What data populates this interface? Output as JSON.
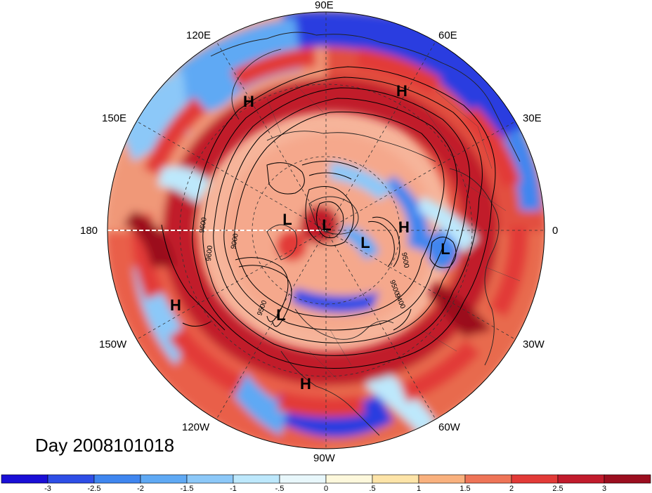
{
  "map": {
    "projection": "north-polar-stereographic",
    "field": "anomaly (shaded) with height contours",
    "longitude_labels": [
      "90E",
      "60E",
      "30E",
      "0",
      "30W",
      "60W",
      "90W",
      "120W",
      "150W",
      "180",
      "150E",
      "120E"
    ],
    "contour_labels": [
      "9600",
      "9600",
      "9000",
      "9500",
      "9500",
      "9500",
      "9400"
    ],
    "pressure_centers": [
      {
        "label": "H",
        "kind": "high"
      },
      {
        "label": "H",
        "kind": "high"
      },
      {
        "label": "H",
        "kind": "high"
      },
      {
        "label": "H",
        "kind": "high"
      },
      {
        "label": "H",
        "kind": "high"
      },
      {
        "label": "L",
        "kind": "low"
      },
      {
        "label": "L",
        "kind": "low"
      },
      {
        "label": "L",
        "kind": "low"
      },
      {
        "label": "L",
        "kind": "low"
      },
      {
        "label": "L",
        "kind": "low"
      }
    ]
  },
  "day_label": "Day 2008101018",
  "colorbar": {
    "colors": [
      "#1a0fd6",
      "#2e4ee6",
      "#3f86ef",
      "#5fa9f4",
      "#8cc8f8",
      "#bde8fc",
      "#e8f7fb",
      "#fdf8dc",
      "#fde4a8",
      "#f9b17e",
      "#ee7457",
      "#e23a37",
      "#c11b2c",
      "#9b0e1f"
    ],
    "ticks": [
      "-3",
      "-2.5",
      "-2",
      "-1.5",
      "-1",
      "-.5",
      "0",
      ".5",
      "1",
      "1.5",
      "2",
      "2.5",
      "3"
    ]
  }
}
